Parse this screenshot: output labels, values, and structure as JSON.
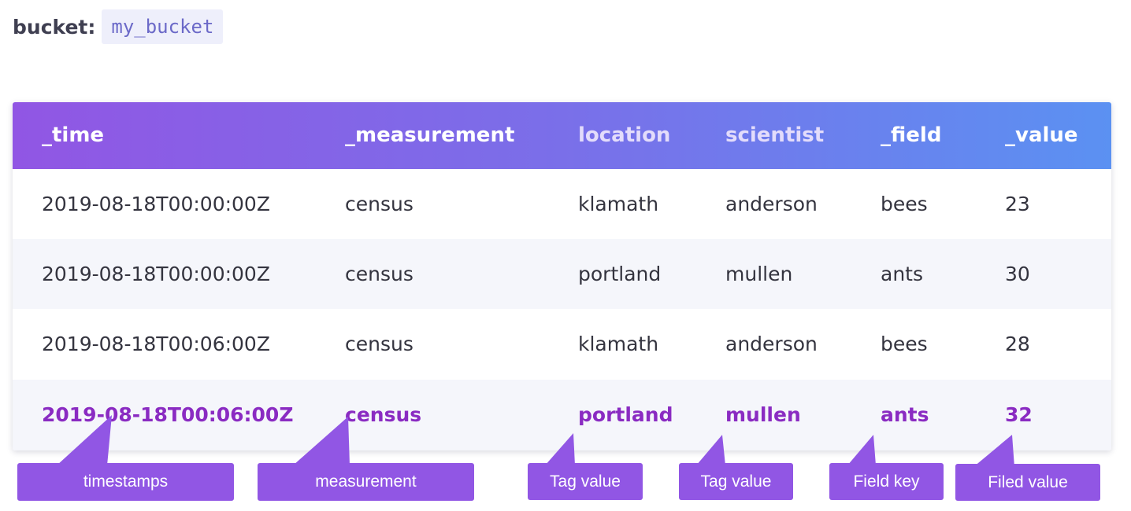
{
  "bucket": {
    "label": "bucket:",
    "name": "my_bucket"
  },
  "table": {
    "columns": [
      {
        "key": "time",
        "label": "_time"
      },
      {
        "key": "measurement",
        "label": "_measurement"
      },
      {
        "key": "location",
        "label": "location"
      },
      {
        "key": "scientist",
        "label": "scientist"
      },
      {
        "key": "field",
        "label": "_field"
      },
      {
        "key": "value",
        "label": "_value"
      }
    ],
    "rows": [
      [
        "2019-08-18T00:00:00Z",
        "census",
        "klamath",
        "anderson",
        "bees",
        "23"
      ],
      [
        "2019-08-18T00:00:00Z",
        "census",
        "portland",
        "mullen",
        "ants",
        "30"
      ],
      [
        "2019-08-18T00:06:00Z",
        "census",
        "klamath",
        "anderson",
        "bees",
        "28"
      ],
      [
        "2019-08-18T00:06:00Z",
        "census",
        "portland",
        "mullen",
        "ants",
        "32"
      ]
    ]
  },
  "callouts": {
    "timestamps": "timestamps",
    "measurement": "measurement",
    "tag_value_location": "Tag value",
    "tag_value_scientist": "Tag value",
    "field_key": "Field key",
    "field_value": "Filed value"
  },
  "colors": {
    "header_gradient_start": "#9156e4",
    "header_gradient_end": "#5b91f2",
    "highlight_text": "#8a2bc2",
    "callout_bg": "#9156e4",
    "bucket_code_text": "#6b69c8",
    "bucket_code_bg": "#eeeffb"
  }
}
